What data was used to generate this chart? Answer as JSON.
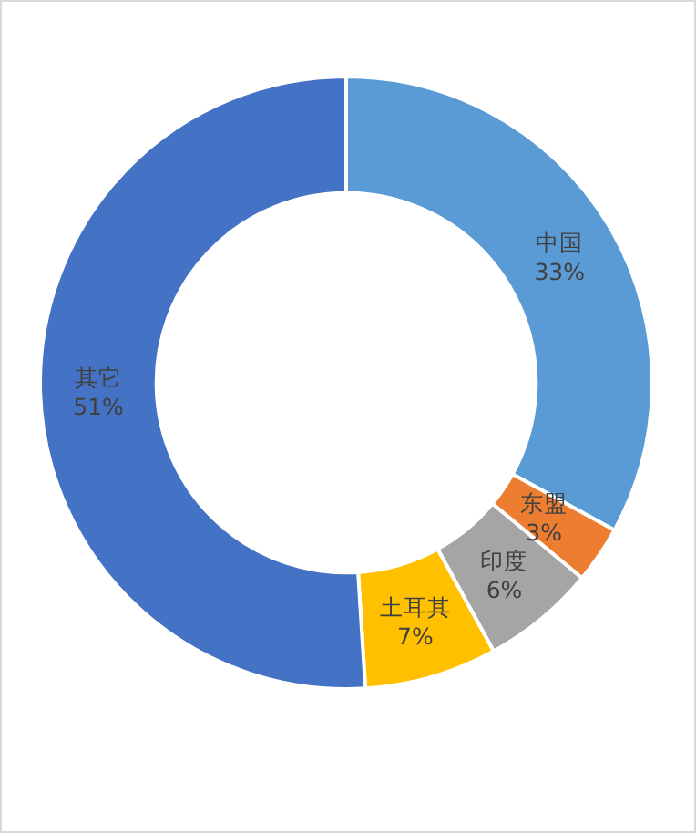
{
  "chart_data": {
    "type": "donut",
    "categories": [
      "中国",
      "东盟",
      "印度",
      "土耳其",
      "其它"
    ],
    "values": [
      33,
      3,
      6,
      7,
      51
    ],
    "colors": [
      "#5b9bd5",
      "#ed7d31",
      "#a5a5a5",
      "#ffc000",
      "#4472c4"
    ],
    "value_labels": [
      "33%",
      "3%",
      "6%",
      "7%",
      "51%"
    ]
  }
}
